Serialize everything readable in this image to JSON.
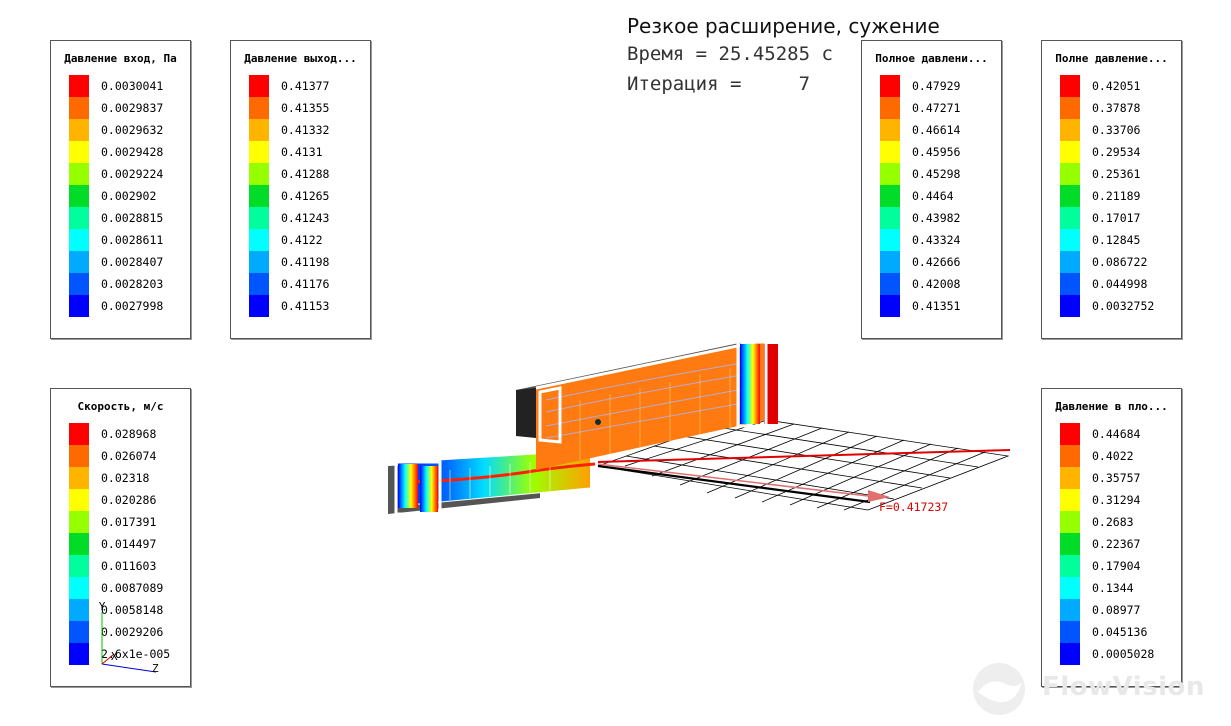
{
  "header": {
    "title": "Резкое расширение, сужение",
    "time_line": "Время = 25.45285 с",
    "iteration_line": "Итерация =     7"
  },
  "colors": {
    "spectrum11": [
      "#ff0000",
      "#ff6a00",
      "#ffb400",
      "#ffff00",
      "#96ff00",
      "#00dc28",
      "#00ff9c",
      "#00ffff",
      "#00aaff",
      "#0055ff",
      "#0000ff"
    ]
  },
  "legends": {
    "inlet_pressure": {
      "title": "Давление вход, Па",
      "values": [
        "0.0030041",
        "0.0029837",
        "0.0029632",
        "0.0029428",
        "0.0029224",
        "0.002902",
        "0.0028815",
        "0.0028611",
        "0.0028407",
        "0.0028203",
        "0.0027998"
      ]
    },
    "outlet_pressure": {
      "title": "Давление выход...",
      "values": [
        "0.41377",
        "0.41355",
        "0.41332",
        "0.4131",
        "0.41288",
        "0.41265",
        "0.41243",
        "0.4122",
        "0.41198",
        "0.41176",
        "0.41153"
      ]
    },
    "total_pressure_1": {
      "title": "Полное давлени...",
      "values": [
        "0.47929",
        "0.47271",
        "0.46614",
        "0.45956",
        "0.45298",
        "0.4464",
        "0.43982",
        "0.43324",
        "0.42666",
        "0.42008",
        "0.41351"
      ]
    },
    "total_pressure_2": {
      "title": "Полне давление...",
      "values": [
        "0.42051",
        "0.37878",
        "0.33706",
        "0.29534",
        "0.25361",
        "0.21189",
        "0.17017",
        "0.12845",
        "0.086722",
        "0.044998",
        "0.0032752"
      ]
    },
    "velocity": {
      "title": "Скорость, м/с",
      "values": [
        "0.028968",
        "0.026074",
        "0.02318",
        "0.020286",
        "0.017391",
        "0.014497",
        "0.011603",
        "0.0087089",
        "0.0058148",
        "0.0029206",
        "2.6x1e-005"
      ]
    },
    "plane_pressure": {
      "title": "Давление в пло...",
      "values": [
        "0.44684",
        "0.4022",
        "0.35757",
        "0.31294",
        "0.2683",
        "0.22367",
        "0.17904",
        "0.1344",
        "0.08977",
        "0.045136",
        "0.0005028"
      ]
    }
  },
  "scene": {
    "force_label": "F=0.417237"
  },
  "axes": {
    "y_label": "Y",
    "x_label": "X",
    "z_label": "Z"
  },
  "logo": {
    "text": "FlowVision"
  }
}
